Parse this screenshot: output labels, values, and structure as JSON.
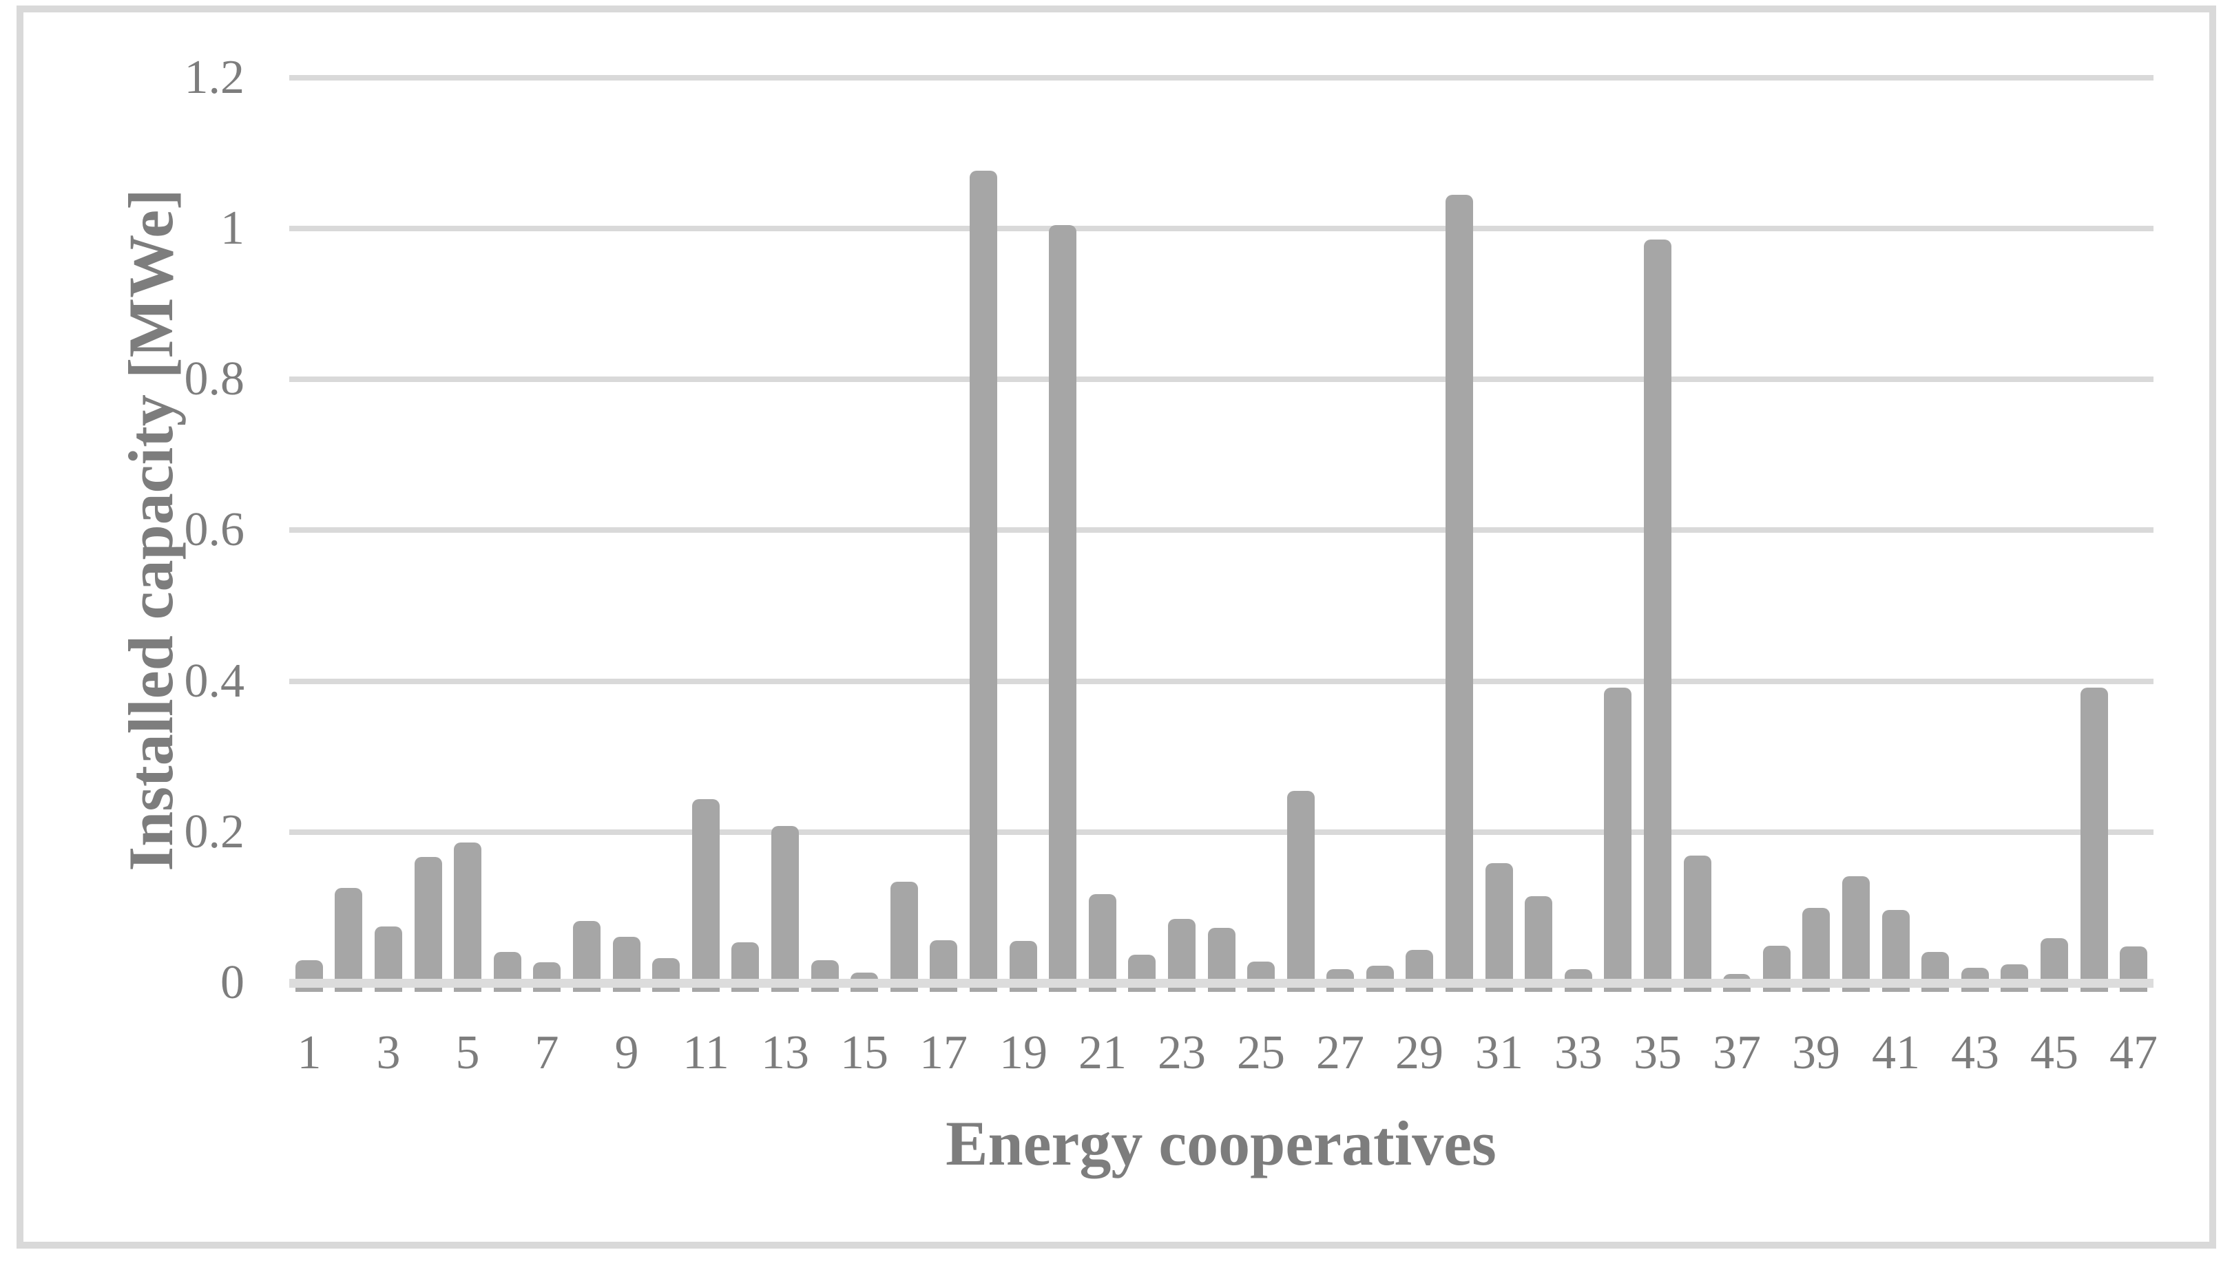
{
  "chart_data": {
    "type": "bar",
    "title": "",
    "xlabel": "Energy cooperatives",
    "ylabel": "Installed capacity [MWe]",
    "categories": [
      "1",
      "2",
      "3",
      "4",
      "5",
      "6",
      "7",
      "8",
      "9",
      "10",
      "11",
      "12",
      "13",
      "14",
      "15",
      "16",
      "17",
      "18",
      "19",
      "20",
      "21",
      "22",
      "23",
      "24",
      "25",
      "26",
      "27",
      "28",
      "29",
      "30",
      "31",
      "32",
      "33",
      "34",
      "35",
      "36",
      "37",
      "38",
      "39",
      "40",
      "41",
      "42",
      "43",
      "44",
      "45",
      "46",
      "47"
    ],
    "values": [
      0.03,
      0.126,
      0.075,
      0.167,
      0.186,
      0.041,
      0.027,
      0.082,
      0.061,
      0.033,
      0.244,
      0.054,
      0.208,
      0.03,
      0.014,
      0.134,
      0.057,
      1.077,
      0.056,
      1.005,
      0.118,
      0.037,
      0.085,
      0.073,
      0.028,
      0.255,
      0.018,
      0.023,
      0.044,
      1.045,
      0.159,
      0.115,
      0.018,
      0.391,
      0.985,
      0.169,
      0.012,
      0.049,
      0.099,
      0.141,
      0.097,
      0.041,
      0.02,
      0.025,
      0.059,
      0.391,
      0.048
    ],
    "x_tick_labels_shown": [
      "1",
      "3",
      "5",
      "7",
      "9",
      "11",
      "13",
      "15",
      "17",
      "19",
      "21",
      "23",
      "25",
      "27",
      "29",
      "31",
      "33",
      "35",
      "37",
      "39",
      "41",
      "43",
      "45",
      "47"
    ],
    "yticks": [
      {
        "label": "0",
        "value": 0
      },
      {
        "label": "0.2",
        "value": 0.2
      },
      {
        "label": "0.4",
        "value": 0.4
      },
      {
        "label": "0.6",
        "value": 0.6
      },
      {
        "label": "0.8",
        "value": 0.8
      },
      {
        "label": "1",
        "value": 1.0
      },
      {
        "label": "1.2",
        "value": 1.2
      }
    ],
    "ylim": [
      0,
      1.2
    ],
    "grid": true,
    "legend": "none",
    "colors": {
      "bar": "#a6a6a6",
      "gridline": "#d9d9d9",
      "axis_line": "#dcdcdc",
      "text": "#7d7d7d",
      "figure_border": "#d9d9d9"
    }
  }
}
